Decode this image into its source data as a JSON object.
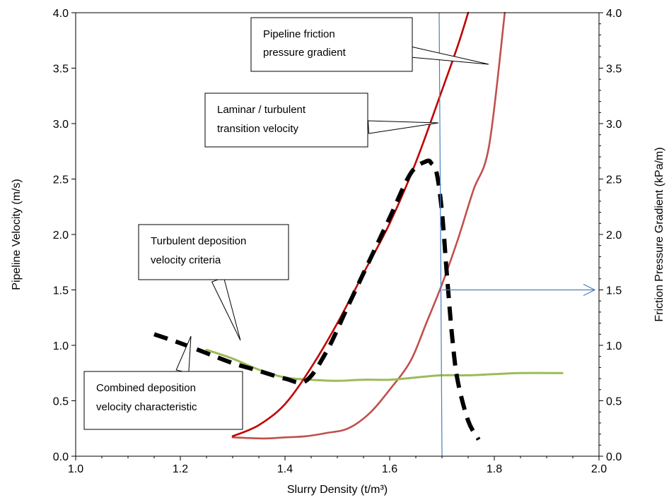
{
  "chart_data": {
    "type": "line",
    "xlabel": "Slurry Density (t/m³)",
    "ylabel": "Pipeline Velocity (m/s)",
    "y2label": "Friction Pressure Gradient (kPa/m)",
    "xlim": [
      1.0,
      2.0
    ],
    "ylim": [
      0.0,
      4.0
    ],
    "y2lim": [
      0.0,
      4.0
    ],
    "grid": false,
    "legend": "none",
    "x_ticks": [
      "1.0",
      "1.2",
      "1.4",
      "1.6",
      "1.8",
      "2.0"
    ],
    "y_ticks": [
      "0.0",
      "0.5",
      "1.0",
      "1.5",
      "2.0",
      "2.5",
      "3.0",
      "3.5",
      "4.0"
    ],
    "y2_ticks": [
      "0.0",
      "0.5",
      "1.0",
      "1.5",
      "2.0",
      "2.5",
      "3.0",
      "3.5",
      "4.0"
    ],
    "series": [
      {
        "key": "laminar",
        "color": "#c00000",
        "style": "solid",
        "x": [
          1.3,
          1.35,
          1.4,
          1.45,
          1.5,
          1.55,
          1.6,
          1.65,
          1.7,
          1.73,
          1.75
        ],
        "y": [
          0.18,
          0.28,
          0.47,
          0.8,
          1.2,
          1.65,
          2.1,
          2.65,
          3.3,
          3.7,
          4.0
        ]
      },
      {
        "key": "friction",
        "color": "#c0504d",
        "style": "solid",
        "x": [
          1.3,
          1.36,
          1.4,
          1.44,
          1.48,
          1.52,
          1.56,
          1.6,
          1.64,
          1.67,
          1.7,
          1.73,
          1.76,
          1.79,
          1.82
        ],
        "y": [
          0.17,
          0.16,
          0.17,
          0.18,
          0.21,
          0.25,
          0.38,
          0.6,
          0.86,
          1.2,
          1.55,
          1.95,
          2.4,
          2.8,
          4.0
        ]
      },
      {
        "key": "turbulent",
        "color": "#9bbb59",
        "style": "solid",
        "x": [
          1.25,
          1.3,
          1.35,
          1.4,
          1.45,
          1.5,
          1.55,
          1.6,
          1.65,
          1.7,
          1.75,
          1.8,
          1.85,
          1.93
        ],
        "y": [
          0.96,
          0.88,
          0.78,
          0.71,
          0.69,
          0.68,
          0.69,
          0.69,
          0.71,
          0.73,
          0.73,
          0.74,
          0.75,
          0.75
        ]
      },
      {
        "key": "combined",
        "color": "#000000",
        "style": "dashed",
        "x": [
          1.15,
          1.2,
          1.25,
          1.3,
          1.35,
          1.4,
          1.44,
          1.48,
          1.52,
          1.56,
          1.6,
          1.64,
          1.67,
          1.68,
          1.69,
          1.7,
          1.71,
          1.72,
          1.73,
          1.75,
          1.77
        ],
        "y": [
          1.1,
          1.02,
          0.93,
          0.84,
          0.77,
          0.7,
          0.68,
          0.95,
          1.35,
          1.75,
          2.15,
          2.55,
          2.66,
          2.64,
          2.55,
          2.2,
          1.6,
          1.05,
          0.68,
          0.32,
          0.15
        ]
      }
    ],
    "annotations": [
      {
        "key": "friction",
        "lines": [
          "Pipeline friction",
          "pressure gradient"
        ]
      },
      {
        "key": "laminar",
        "lines": [
          "Laminar / turbulent",
          "transition velocity"
        ]
      },
      {
        "key": "turbulent",
        "lines": [
          "Turbulent deposition",
          "velocity criteria"
        ]
      },
      {
        "key": "combined",
        "lines": [
          "Combined deposition",
          "velocity characteristic"
        ]
      }
    ],
    "reference_line": {
      "x": 1.7,
      "color": "#4a7ebb",
      "arrow_y": 1.5
    }
  }
}
